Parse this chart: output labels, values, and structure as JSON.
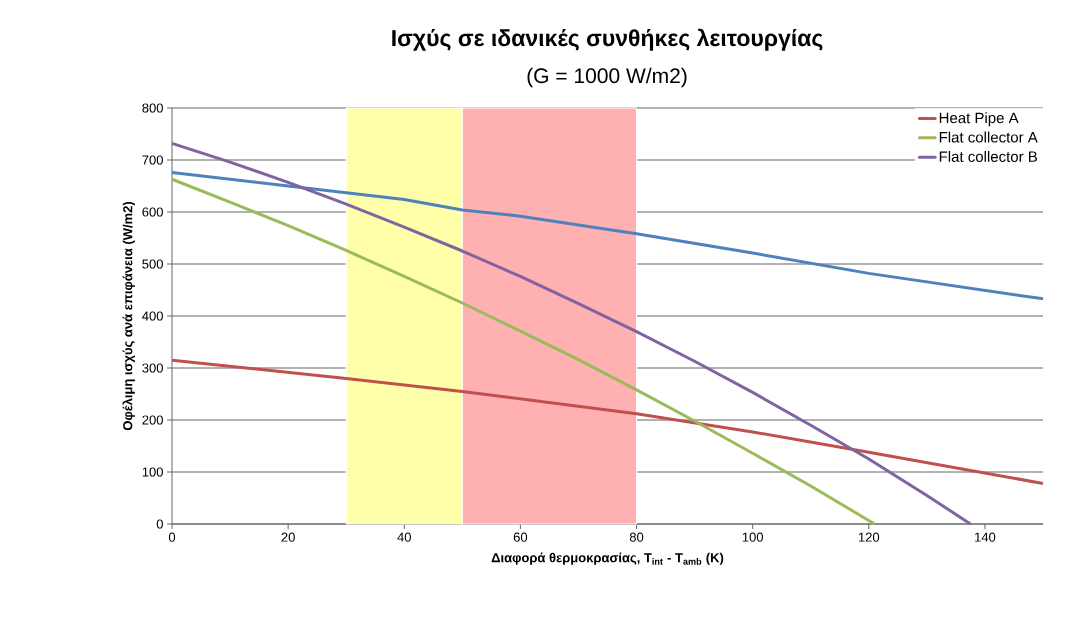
{
  "chart_data": {
    "type": "line",
    "title": "Ισχύς σε ιδανικές συνθήκες λειτουργίας",
    "subtitle": "(G = 1000 W/m2)",
    "xlabel": "Διαφορά θερμοκρασίας, T$_{int}$ -  T$_{amb}$ (K)",
    "ylabel": "Οφέλιμη ισχύς ανά επιφάνεια (W/m2)",
    "series": [
      {
        "color": "#4f81bd",
        "x": [
          0,
          20,
          40,
          50,
          60,
          80,
          100,
          120,
          150
        ],
        "values": [
          676,
          650,
          624,
          604,
          592,
          558,
          521,
          482,
          433
        ]
      },
      {
        "name": "Heat Pipe A",
        "color": "#c0504d",
        "x": [
          0,
          30,
          50,
          80,
          100,
          120,
          150
        ],
        "values": [
          315,
          280,
          255,
          212,
          177,
          138,
          78
        ]
      },
      {
        "name": "Flat collector A",
        "color": "#9bbb59",
        "x": [
          0,
          10,
          20,
          30,
          40,
          50,
          60,
          70,
          80,
          90,
          100,
          110,
          121
        ],
        "values": [
          663,
          619,
          574,
          526,
          476,
          425,
          371,
          316,
          258,
          198,
          136,
          73,
          0
        ]
      },
      {
        "name": "Flat collector B",
        "color": "#8064a2",
        "x": [
          0,
          10,
          20,
          30,
          40,
          50,
          60,
          70,
          80,
          90,
          100,
          110,
          120,
          130,
          137.5
        ],
        "values": [
          732,
          696,
          657,
          615,
          571,
          525,
          476,
          424,
          370,
          313,
          253,
          190,
          125,
          55,
          0
        ]
      }
    ],
    "bands": [
      {
        "axis": "x",
        "from": 30,
        "to": 50,
        "color": "#ffffaa"
      },
      {
        "axis": "x",
        "from": 50,
        "to": 80,
        "color": "#ffb0b0"
      }
    ],
    "xlim": [
      0,
      150
    ],
    "ylim": [
      0,
      800
    ],
    "xticks": [
      0,
      20,
      40,
      60,
      80,
      100,
      120,
      140
    ],
    "yticks": [
      0,
      100,
      200,
      300,
      400,
      500,
      600,
      700,
      800
    ],
    "grid": "y",
    "legend": "top right",
    "line_style": "solid",
    "marker": "none"
  }
}
